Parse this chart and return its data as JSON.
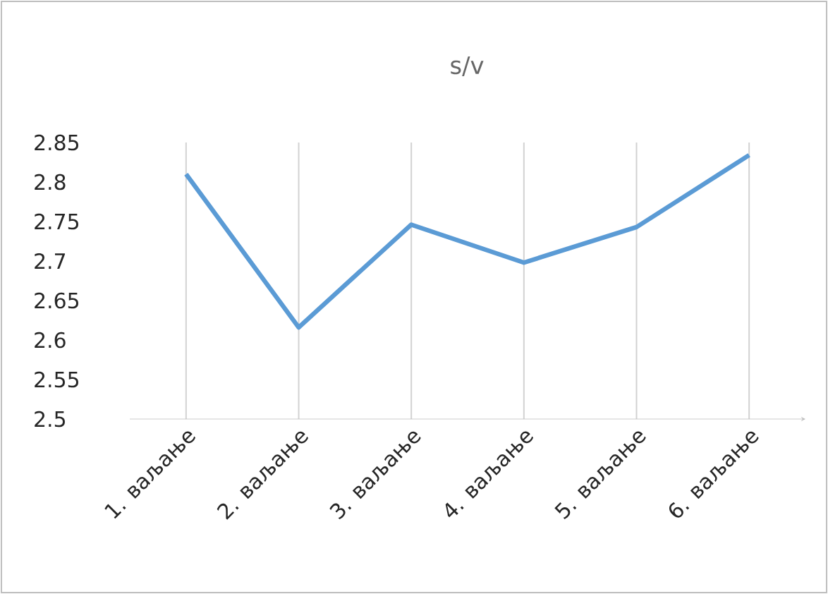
{
  "chart_data": {
    "type": "line",
    "title": "s/v",
    "categories": [
      "1. ваљање",
      "2. ваљање",
      "3. ваљање",
      "4. ваљање",
      "5. ваљање",
      "6. ваљање"
    ],
    "values": [
      2.81,
      2.616,
      2.746,
      2.698,
      2.743,
      2.834
    ],
    "color": "#5b9bd5",
    "ylim": [
      2.5,
      2.85
    ],
    "yticks": [
      2.5,
      2.55,
      2.6,
      2.65,
      2.7,
      2.75,
      2.8,
      2.85
    ],
    "grid": "x"
  }
}
